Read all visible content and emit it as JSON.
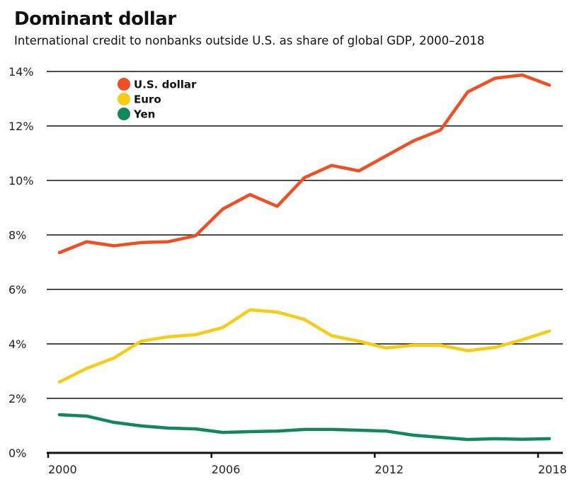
{
  "chart_data": {
    "type": "line",
    "title": "Dominant dollar",
    "subtitle": "International credit to nonbanks outside U.S. as share of global GDP, 2000–2018",
    "xlabel": "",
    "ylabel": "",
    "x": [
      2000,
      2001,
      2002,
      2003,
      2004,
      2005,
      2006,
      2007,
      2008,
      2009,
      2010,
      2011,
      2012,
      2013,
      2014,
      2015,
      2016,
      2017,
      2018
    ],
    "x_ticks": [
      "2000",
      "2006",
      "2012",
      "2018"
    ],
    "y_ticks": [
      "0%",
      "2%",
      "4%",
      "6%",
      "8%",
      "10%",
      "12%",
      "14%"
    ],
    "ylim": [
      0,
      14
    ],
    "grid": true,
    "legend_position": "top-left",
    "series": [
      {
        "name": "U.S. dollar",
        "color": "#f04e23",
        "values": [
          7.35,
          7.75,
          7.6,
          7.72,
          7.75,
          7.97,
          8.95,
          9.48,
          9.05,
          10.1,
          10.55,
          10.35,
          10.9,
          11.45,
          11.85,
          13.25,
          13.75,
          13.87,
          13.5
        ]
      },
      {
        "name": "Euro",
        "color": "#f7cc16",
        "values": [
          2.6,
          3.1,
          3.48,
          4.1,
          4.26,
          4.34,
          4.6,
          5.25,
          5.17,
          4.9,
          4.3,
          4.1,
          3.85,
          3.95,
          3.95,
          3.75,
          3.87,
          4.15,
          4.47
        ]
      },
      {
        "name": "Yen",
        "color": "#12875a",
        "values": [
          1.4,
          1.35,
          1.12,
          0.99,
          0.91,
          0.88,
          0.75,
          0.78,
          0.8,
          0.86,
          0.86,
          0.83,
          0.8,
          0.65,
          0.57,
          0.49,
          0.52,
          0.5,
          0.52
        ]
      }
    ]
  }
}
